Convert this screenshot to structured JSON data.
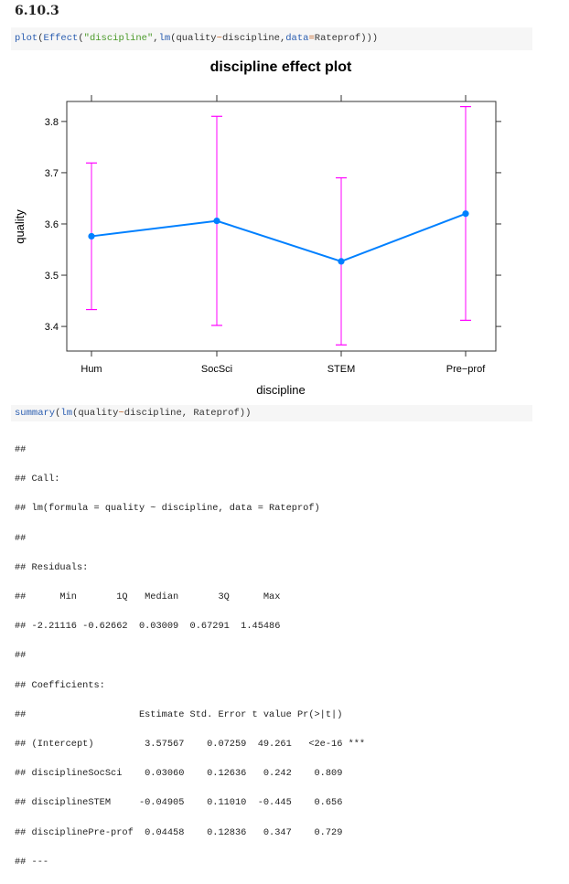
{
  "section": "6.10.3",
  "code1": {
    "fn1": "plot",
    "p1": "(",
    "fn2": "Effect",
    "p2": "(",
    "str": "\"discipline\"",
    "p3": ",",
    "fn3": "lm",
    "p4": "(quality",
    "op": "~",
    "p5": "discipline,",
    "arg": "data",
    "eq": "=",
    "p6": "Rateprof)))"
  },
  "code2": {
    "fn1": "summary",
    "p1": "(",
    "fn2": "lm",
    "p2": "(quality",
    "op": "~",
    "p3": "discipline, Rateprof))"
  },
  "output_lines": [
    "##",
    "## Call:",
    "## lm(formula = quality ~ discipline, data = Rateprof)",
    "##",
    "## Residuals:",
    "##      Min       1Q   Median       3Q      Max",
    "## -2.21116 -0.62662  0.03009  0.67291  1.45486",
    "##",
    "## Coefficients:",
    "##                    Estimate Std. Error t value Pr(>|t|)",
    "## (Intercept)         3.57567    0.07259  49.261   <2e-16 ***",
    "## disciplineSocSci    0.03060    0.12636   0.242    0.809",
    "## disciplineSTEM     -0.04905    0.11010  -0.445    0.656",
    "## disciplinePre-prof  0.04458    0.12836   0.347    0.729",
    "## ---"
  ],
  "chart_data": {
    "type": "line",
    "title": "discipline effect plot",
    "xlabel": "discipline",
    "ylabel": "quality",
    "categories": [
      "Hum",
      "SocSci",
      "STEM",
      "Pre−prof"
    ],
    "values": [
      3.576,
      3.606,
      3.527,
      3.62
    ],
    "lower": [
      3.433,
      3.402,
      3.364,
      3.412
    ],
    "upper": [
      3.719,
      3.81,
      3.69,
      3.829
    ],
    "yticks": [
      "3.4",
      "3.5",
      "3.6",
      "3.7",
      "3.8"
    ],
    "ylim": [
      3.352,
      3.839
    ],
    "grid": false,
    "colors": {
      "line": "#0080ff",
      "errorbar": "#ff00ff"
    }
  }
}
